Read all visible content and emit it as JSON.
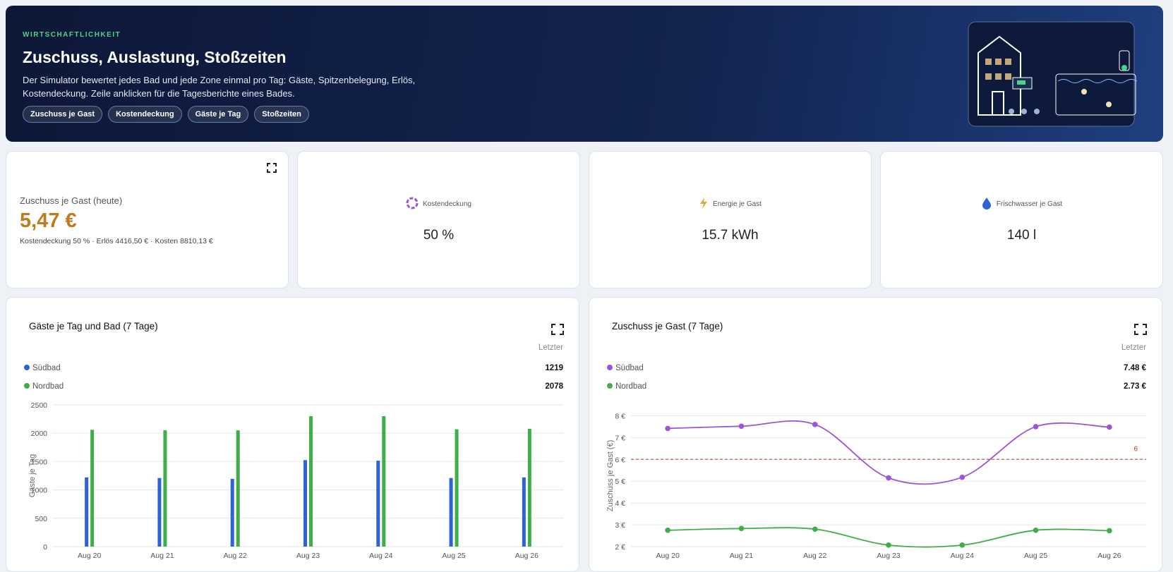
{
  "header": {
    "eyebrow": "WIRTSCHAFTLICHKEIT",
    "title": "Zuschuss, Auslastung, Stoßzeiten",
    "description": "Der Simulator bewertet jedes Bad und jede Zone einmal pro Tag: Gäste, Spitzenbelegung, Erlös, Kostendeckung. Zeile anklicken für die Tagesberichte eines Bades.",
    "chips": [
      "Zuschuss je Gast",
      "Kostendeckung",
      "Gäste je Tag",
      "Stoßzeiten"
    ]
  },
  "kpis": {
    "main": {
      "label": "Zuschuss je Gast (heute)",
      "value": "5,47 €",
      "detail": "Kostendeckung 50 % · Erlös 4416,50 € · Kosten 8810,13 €"
    },
    "cards": [
      {
        "label": "Kostendeckung",
        "value": "50 %"
      },
      {
        "label": "Energie je Gast",
        "value": "15.7 kWh"
      },
      {
        "label": "Frischwasser je Gast",
        "value": "140 l"
      }
    ]
  },
  "chart_data": [
    {
      "type": "bar",
      "title": "Gäste je Tag und Bad (7 Tage)",
      "legend_header": "Letzter",
      "y_label": "Gäste je Tag",
      "categories": [
        "Aug 20",
        "Aug 21",
        "Aug 22",
        "Aug 23",
        "Aug 24",
        "Aug 25",
        "Aug 26"
      ],
      "series": [
        {
          "name": "Südbad",
          "color": "#2f62d6",
          "values": [
            1220,
            1210,
            1195,
            1525,
            1515,
            1210,
            1219
          ]
        },
        {
          "name": "Nordbad",
          "color": "#3fae4a",
          "values": [
            2060,
            2050,
            2050,
            2300,
            2300,
            2070,
            2078
          ]
        }
      ],
      "ylim": [
        0,
        2500
      ],
      "yticks": [
        0,
        500,
        1000,
        1500,
        2000,
        2500
      ],
      "grid": true
    },
    {
      "type": "line",
      "title": "Zuschuss je Gast (7 Tage)",
      "legend_header": "Letzter",
      "y_label": "Zuschuss je Gast (€)",
      "categories": [
        "Aug 20",
        "Aug 21",
        "Aug 22",
        "Aug 23",
        "Aug 24",
        "Aug 25",
        "Aug 26"
      ],
      "series": [
        {
          "name": "Südbad",
          "color": "#9b55d6",
          "values": [
            7.42,
            7.52,
            7.6,
            5.15,
            5.18,
            7.5,
            7.48
          ],
          "legend_value": "7.48 €"
        },
        {
          "name": "Nordbad",
          "color": "#3fae4a",
          "values": [
            2.75,
            2.83,
            2.8,
            2.07,
            2.07,
            2.75,
            2.73
          ],
          "legend_value": "2.73 €"
        }
      ],
      "ylim": [
        2,
        8.5
      ],
      "yticks": [
        {
          "value": 2,
          "label": "2 €"
        },
        {
          "value": 3,
          "label": "3 €"
        },
        {
          "value": 4,
          "label": "4 €"
        },
        {
          "value": 5,
          "label": "5 €"
        },
        {
          "value": 6,
          "label": "6 €"
        },
        {
          "value": 7,
          "label": "7 €"
        },
        {
          "value": 8,
          "label": "8 €"
        }
      ],
      "threshold": 6,
      "threshold_color": "#c0392b",
      "grid": true
    }
  ]
}
